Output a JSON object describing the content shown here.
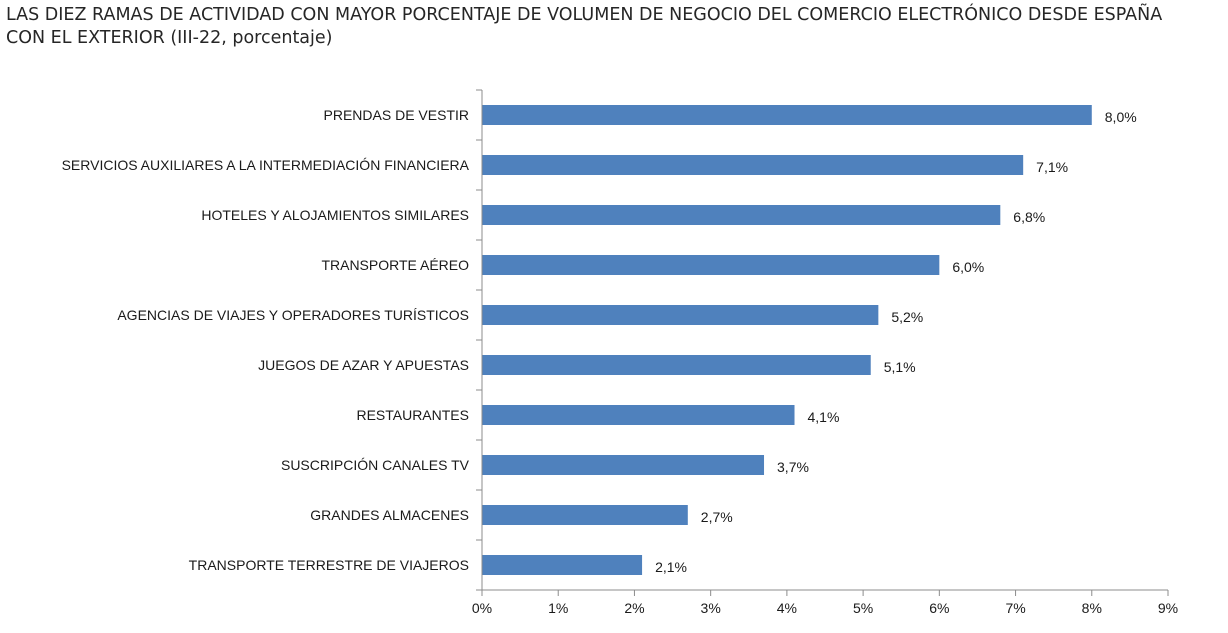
{
  "chart_data": {
    "type": "bar",
    "orientation": "horizontal",
    "title": "LAS DIEZ RAMAS DE ACTIVIDAD CON MAYOR PORCENTAJE DE VOLUMEN DE NEGOCIO DEL COMERCIO ELECTRÓNICO DESDE ESPAÑA CON EL EXTERIOR (III-22, porcentaje)",
    "categories": [
      "PRENDAS DE VESTIR",
      "SERVICIOS AUXILIARES A LA INTERMEDIACIÓN FINANCIERA",
      "HOTELES  Y ALOJAMIENTOS SIMILARES",
      "TRANSPORTE AÉREO",
      "AGENCIAS DE VIAJES Y OPERADORES TURÍSTICOS",
      "JUEGOS DE AZAR Y APUESTAS",
      "RESTAURANTES",
      "SUSCRIPCIÓN CANALES TV",
      "GRANDES ALMACENES",
      "TRANSPORTE TERRESTRE DE VIAJEROS"
    ],
    "values": [
      8.0,
      7.1,
      6.8,
      6.0,
      5.2,
      5.1,
      4.1,
      3.7,
      2.7,
      2.1
    ],
    "value_labels": [
      "8,0%",
      "7,1%",
      "6,8%",
      "6,0%",
      "5,2%",
      "5,1%",
      "4,1%",
      "3,7%",
      "2,7%",
      "2,1%"
    ],
    "xlim": [
      0,
      9
    ],
    "x_ticks": [
      0,
      1,
      2,
      3,
      4,
      5,
      6,
      7,
      8,
      9
    ],
    "x_tick_labels": [
      "0%",
      "1%",
      "2%",
      "3%",
      "4%",
      "5%",
      "6%",
      "7%",
      "8%",
      "9%"
    ],
    "bar_color": "#4f81bd",
    "grid": false,
    "legend": "none"
  }
}
